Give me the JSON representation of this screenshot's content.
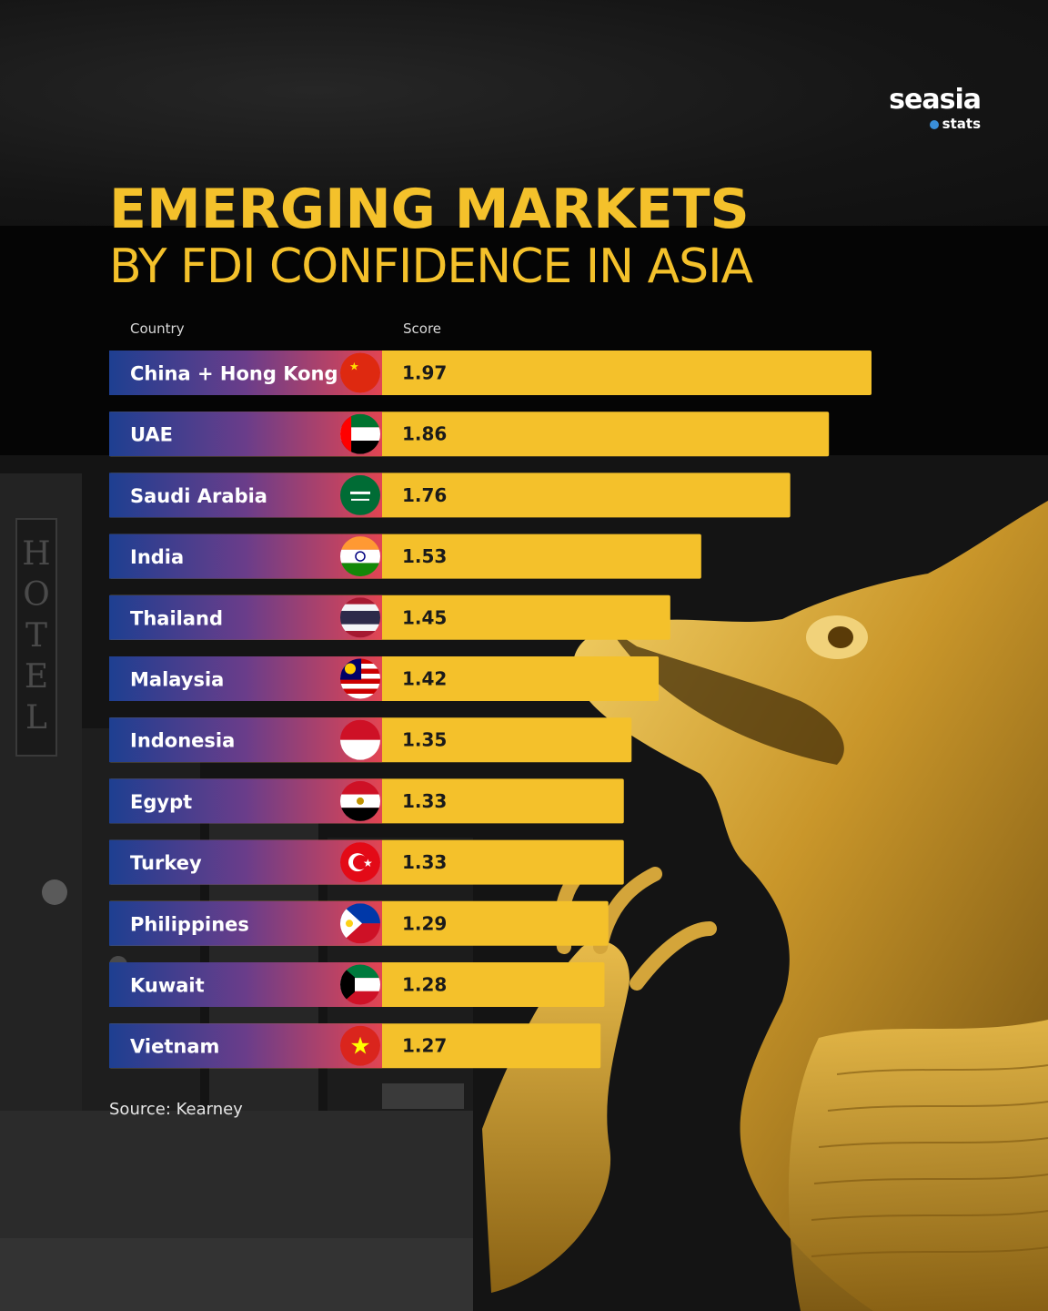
{
  "brand": {
    "name": "seasia",
    "sub": "stats"
  },
  "title": {
    "main": "EMERGING MARKETS",
    "sub": "BY FDI CONFIDENCE IN ASIA"
  },
  "source": "Source: Kearney",
  "colors": {
    "bar": "#f4c12b",
    "gradient_start": "#1e3f91",
    "gradient_end": "#e24552",
    "title": "#f4c12b"
  },
  "chart_data": {
    "type": "bar",
    "orientation": "horizontal",
    "title": "EMERGING MARKETS BY FDI CONFIDENCE IN ASIA",
    "xlabel": "Score",
    "ylabel": "Country",
    "categories": [
      "China + Hong Kong",
      "UAE",
      "Saudi Arabia",
      "India",
      "Thailand",
      "Malaysia",
      "Indonesia",
      "Egypt",
      "Turkey",
      "Philippines",
      "Kuwait",
      "Vietnam"
    ],
    "values": [
      1.97,
      1.86,
      1.76,
      1.53,
      1.45,
      1.42,
      1.35,
      1.33,
      1.33,
      1.29,
      1.28,
      1.27
    ],
    "value_labels": [
      "1.97",
      "1.86",
      "1.76",
      "1.53",
      "1.45",
      "1.42",
      "1.35",
      "1.33",
      "1.33",
      "1.29",
      "1.28",
      "1.27"
    ],
    "flag_icons": [
      "china-flag-icon",
      "uae-flag-icon",
      "saudi-arabia-flag-icon",
      "india-flag-icon",
      "thailand-flag-icon",
      "malaysia-flag-icon",
      "indonesia-flag-icon",
      "egypt-flag-icon",
      "turkey-flag-icon",
      "philippines-flag-icon",
      "kuwait-flag-icon",
      "vietnam-flag-icon"
    ],
    "xlim": [
      0,
      2.05
    ],
    "grid": false,
    "legend": "none"
  }
}
